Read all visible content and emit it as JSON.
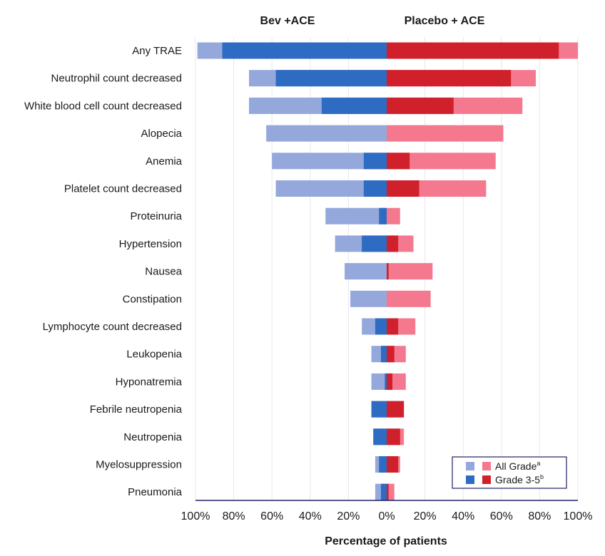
{
  "chart_data": {
    "type": "bar",
    "orientation": "horizontal-diverging",
    "left_title": "Bev +ACE",
    "right_title": "Placebo + ACE",
    "xlabel": "Percentage of patients",
    "xlim": [
      -100,
      100
    ],
    "x_ticks": [
      "100%",
      "80%",
      "60%",
      "40%",
      "20%",
      "0%",
      "20%",
      "40%",
      "60%",
      "80%",
      "100%"
    ],
    "categories": [
      "Any TRAE",
      "Neutrophil count decreased",
      "White blood cell count decreased",
      "Alopecia",
      "Anemia",
      "Platelet count decreased",
      "Proteinuria",
      "Hypertension",
      "Nausea",
      "Constipation",
      "Lymphocyte count decreased",
      "Leukopenia",
      "Hyponatremia",
      "Febrile neutropenia",
      "Neutropenia",
      "Myelosuppression",
      "Pneumonia"
    ],
    "series": [
      {
        "name": "Bev +ACE All Grade",
        "side": "left",
        "values": [
          99,
          72,
          72,
          63,
          60,
          58,
          32,
          27,
          22,
          19,
          13,
          8,
          8,
          8,
          7,
          6,
          6
        ]
      },
      {
        "name": "Bev +ACE Grade 3-5",
        "side": "left",
        "values": [
          86,
          58,
          34,
          0,
          12,
          12,
          4,
          13,
          0,
          0,
          6,
          3,
          1,
          8,
          7,
          4,
          3
        ]
      },
      {
        "name": "Placebo + ACE All Grade",
        "side": "right",
        "values": [
          100,
          78,
          71,
          61,
          57,
          52,
          7,
          14,
          24,
          23,
          15,
          10,
          10,
          9,
          9,
          7,
          4
        ]
      },
      {
        "name": "Placebo + ACE Grade 3-5",
        "side": "right",
        "values": [
          90,
          65,
          35,
          0,
          12,
          17,
          0,
          6,
          1,
          0,
          6,
          4,
          3,
          9,
          7,
          6,
          1
        ]
      }
    ],
    "colors": {
      "left_all": "#95A8DC",
      "left_grade": "#2E6BC2",
      "right_all": "#F4798F",
      "right_grade": "#D0202C",
      "axis": "#1F2066",
      "grid": "#E8E8EE"
    },
    "legend": {
      "position": "bottom-right",
      "items": [
        {
          "label": "All Grade",
          "sup": "a"
        },
        {
          "label": "Grade 3-5",
          "sup": "b"
        }
      ]
    }
  }
}
